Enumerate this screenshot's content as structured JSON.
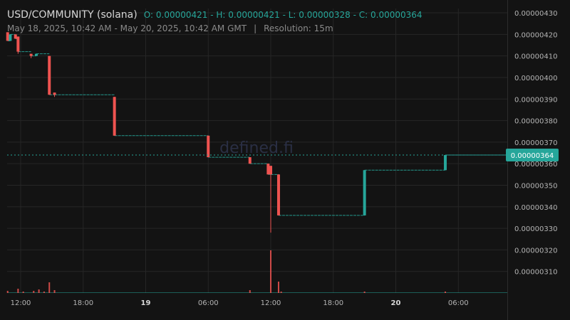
{
  "header": {
    "symbol": "USD/COMMUNITY (solana)",
    "ohlc": "O: 0.00000421 - H: 0.00000421 - L: 0.00000328 - C: 0.00000364",
    "range": "May 18, 2025, 10:42 AM - May 20, 2025, 10:42 AM GMT",
    "separator": "|",
    "resolution": "Resolution: 15m"
  },
  "watermark": "defined.fi",
  "colors": {
    "up": "#26a69a",
    "down": "#ef5350",
    "grid": "#262626",
    "bg": "#131313"
  },
  "chart_data": {
    "type": "candlestick",
    "title": "USD/COMMUNITY (solana)",
    "resolution": "15m",
    "xlabel": "",
    "ylabel": "",
    "x_range": [
      "2025-05-18 10:42",
      "2025-05-20 10:42"
    ],
    "ylim": [
      3e-06,
      4.32e-06
    ],
    "yticks": [
      "0.00000310",
      "0.00000320",
      "0.00000330",
      "0.00000340",
      "0.00000350",
      "0.00000360",
      "0.00000370",
      "0.00000380",
      "0.00000390",
      "0.00000400",
      "0.00000410",
      "0.00000420",
      "0.00000430"
    ],
    "xticks": [
      {
        "time": "2025-05-18 12:00",
        "label": "12:00",
        "bold": false
      },
      {
        "time": "2025-05-18 18:00",
        "label": "18:00",
        "bold": false
      },
      {
        "time": "2025-05-19 00:00",
        "label": "19",
        "bold": true
      },
      {
        "time": "2025-05-19 06:00",
        "label": "06:00",
        "bold": false
      },
      {
        "time": "2025-05-19 12:00",
        "label": "12:00",
        "bold": false
      },
      {
        "time": "2025-05-19 18:00",
        "label": "18:00",
        "bold": false
      },
      {
        "time": "2025-05-20 00:00",
        "label": "20",
        "bold": true
      },
      {
        "time": "2025-05-20 06:00",
        "label": "06:00",
        "bold": false
      }
    ],
    "last_price": "0.00000364",
    "candles": [
      {
        "t": "2025-05-18 10:45",
        "o": 4.21e-06,
        "h": 4.21e-06,
        "l": 4.17e-06,
        "c": 4.17e-06
      },
      {
        "t": "2025-05-18 11:00",
        "o": 4.17e-06,
        "h": 4.2e-06,
        "l": 4.17e-06,
        "c": 4.2e-06
      },
      {
        "t": "2025-05-18 11:30",
        "o": 4.2e-06,
        "h": 4.2e-06,
        "l": 4.18e-06,
        "c": 4.18e-06
      },
      {
        "t": "2025-05-18 11:45",
        "o": 4.19e-06,
        "h": 4.19e-06,
        "l": 4.11e-06,
        "c": 4.12e-06
      },
      {
        "t": "2025-05-18 13:00",
        "o": 4.11e-06,
        "h": 4.11e-06,
        "l": 4.09e-06,
        "c": 4.1e-06
      },
      {
        "t": "2025-05-18 13:30",
        "o": 4.1e-06,
        "h": 4.11e-06,
        "l": 4.1e-06,
        "c": 4.11e-06
      },
      {
        "t": "2025-05-18 14:45",
        "o": 4.1e-06,
        "h": 4.1e-06,
        "l": 3.92e-06,
        "c": 3.92e-06
      },
      {
        "t": "2025-05-18 15:15",
        "o": 3.93e-06,
        "h": 3.93e-06,
        "l": 3.91e-06,
        "c": 3.92e-06
      },
      {
        "t": "2025-05-18 21:00",
        "o": 3.91e-06,
        "h": 3.91e-06,
        "l": 3.73e-06,
        "c": 3.73e-06
      },
      {
        "t": "2025-05-19 06:00",
        "o": 3.73e-06,
        "h": 3.73e-06,
        "l": 3.63e-06,
        "c": 3.63e-06
      },
      {
        "t": "2025-05-19 10:00",
        "o": 3.63e-06,
        "h": 3.63e-06,
        "l": 3.6e-06,
        "c": 3.6e-06
      },
      {
        "t": "2025-05-19 11:45",
        "o": 3.6e-06,
        "h": 3.6e-06,
        "l": 3.55e-06,
        "c": 3.55e-06
      },
      {
        "t": "2025-05-19 12:00",
        "o": 3.59e-06,
        "h": 3.59e-06,
        "l": 3.28e-06,
        "c": 3.55e-06
      },
      {
        "t": "2025-05-19 12:45",
        "o": 3.55e-06,
        "h": 3.55e-06,
        "l": 3.36e-06,
        "c": 3.36e-06
      },
      {
        "t": "2025-05-19 21:00",
        "o": 3.36e-06,
        "h": 3.57e-06,
        "l": 3.36e-06,
        "c": 3.57e-06
      },
      {
        "t": "2025-05-20 04:45",
        "o": 3.57e-06,
        "h": 3.64e-06,
        "l": 3.57e-06,
        "c": 3.64e-06
      }
    ],
    "volume": [
      {
        "t": "2025-05-18 10:45",
        "v": 3
      },
      {
        "t": "2025-05-18 11:45",
        "v": 6
      },
      {
        "t": "2025-05-18 12:15",
        "v": 2
      },
      {
        "t": "2025-05-18 13:15",
        "v": 3
      },
      {
        "t": "2025-05-18 13:45",
        "v": 5
      },
      {
        "t": "2025-05-18 14:15",
        "v": 2
      },
      {
        "t": "2025-05-18 14:45",
        "v": 15
      },
      {
        "t": "2025-05-18 15:15",
        "v": 4
      },
      {
        "t": "2025-05-19 10:00",
        "v": 4
      },
      {
        "t": "2025-05-19 12:00",
        "v": 60
      },
      {
        "t": "2025-05-19 12:45",
        "v": 16
      },
      {
        "t": "2025-05-19 13:00",
        "v": 2
      },
      {
        "t": "2025-05-19 21:00",
        "v": 2
      },
      {
        "t": "2025-05-20 04:45",
        "v": 2
      }
    ]
  }
}
